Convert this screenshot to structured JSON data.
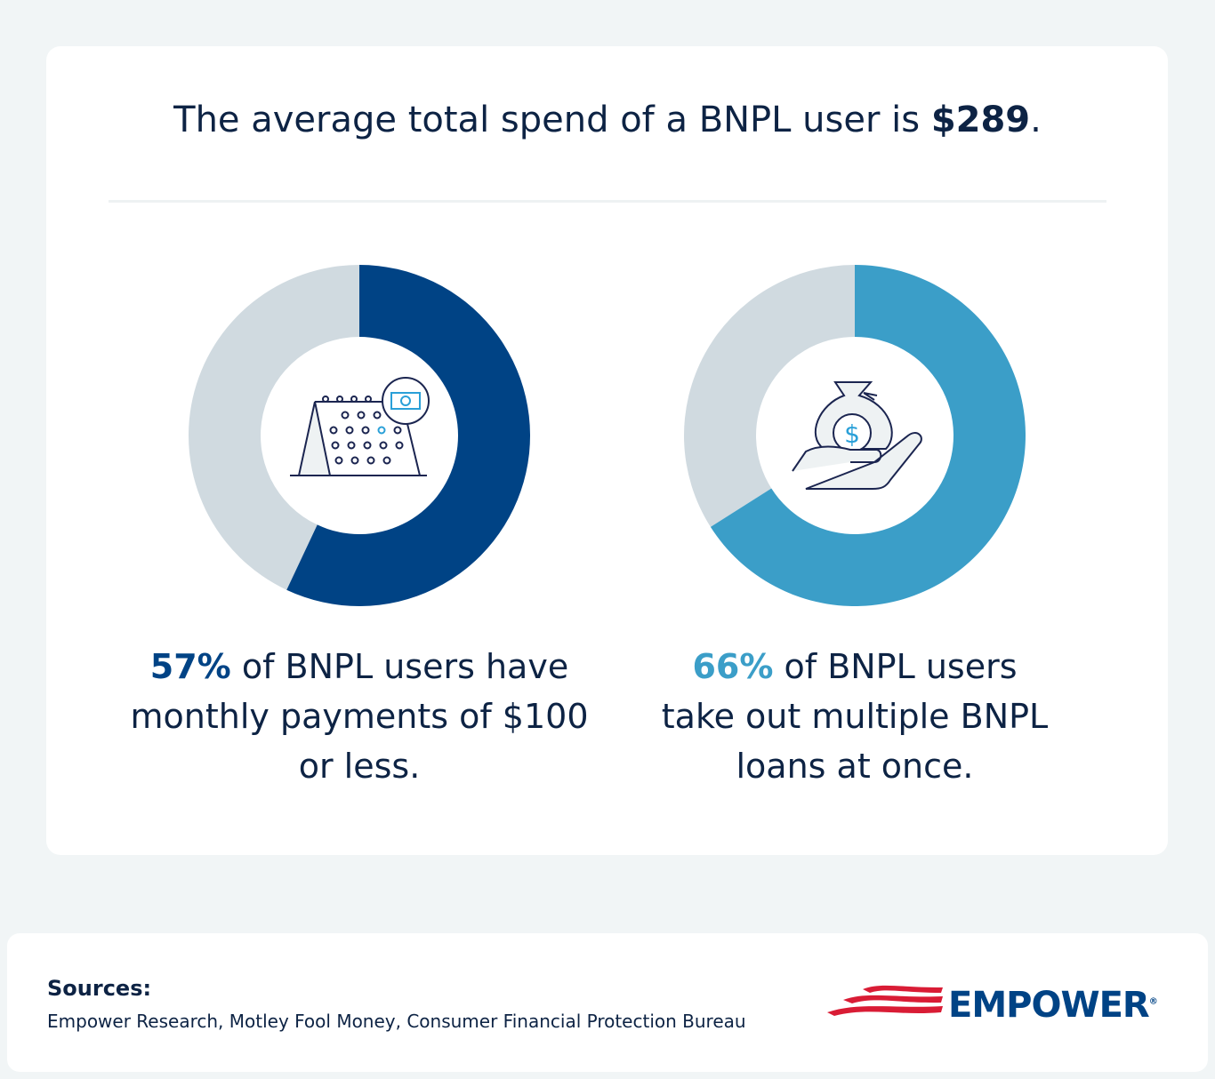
{
  "headline": {
    "prefix": "The average total spend of a BNPL user is ",
    "amount": "$289",
    "suffix": "."
  },
  "chart_data": [
    {
      "type": "pie",
      "variant": "donut",
      "values": [
        57,
        43
      ],
      "highlight_color": "#004385",
      "rest_color": "#d0dae0",
      "icon": "calendar-money-icon",
      "caption": {
        "value": "57%",
        "text": " of BNPL users have monthly payments of $100 or less."
      }
    },
    {
      "type": "pie",
      "variant": "donut",
      "values": [
        66,
        34
      ],
      "highlight_color": "#3b9ec8",
      "rest_color": "#d0dae0",
      "icon": "money-bag-hand-icon",
      "caption": {
        "value": "66%",
        "text": " of BNPL users take out multiple BNPL loans at once."
      }
    }
  ],
  "footer": {
    "sources_label": "Sources:",
    "sources": "Empower Research, Motley Fool Money, Consumer Financial Protection Bureau",
    "logo": "EMPOWER",
    "logo_mark": "®"
  }
}
